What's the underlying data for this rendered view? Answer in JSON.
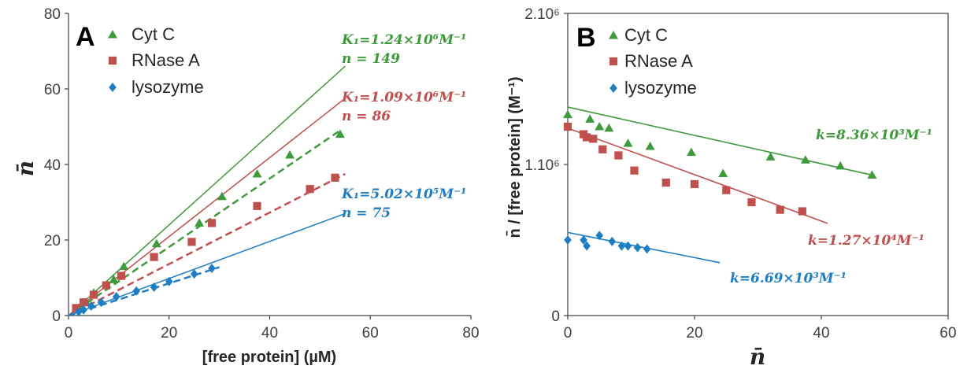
{
  "chart_data": [
    {
      "type": "scatter",
      "panel_label": "A",
      "xlabel": "[free protein] (µM)",
      "ylabel": "n̄",
      "xlim": [
        0,
        80
      ],
      "ylim": [
        0,
        80
      ],
      "x_ticks": [
        "0",
        "20",
        "40",
        "60",
        "80"
      ],
      "y_ticks": [
        "0",
        "20",
        "40",
        "60",
        "80"
      ],
      "legend_position": "top-left",
      "series": [
        {
          "name": "Cyt C",
          "color": "#3f9a3c",
          "marker": "triangle",
          "points": [
            [
              2,
              2
            ],
            [
              3.5,
              3.5
            ],
            [
              5,
              6
            ],
            [
              9,
              9.5
            ],
            [
              11,
              13
            ],
            [
              17.5,
              19
            ],
            [
              26,
              24.5
            ],
            [
              30.5,
              31.5
            ],
            [
              37.5,
              37.5
            ],
            [
              44,
              42.5
            ],
            [
              54,
              48
            ]
          ],
          "trend": [
            [
              0,
              0
            ],
            [
              54,
              49
            ]
          ],
          "langmuir_line": [
            [
              0,
              0
            ],
            [
              55,
              66
            ]
          ]
        },
        {
          "name": "RNase A",
          "color": "#c0504d",
          "marker": "square",
          "points": [
            [
              1.5,
              2
            ],
            [
              3,
              3.5
            ],
            [
              5,
              5.5
            ],
            [
              7.5,
              8
            ],
            [
              10.5,
              10.5
            ],
            [
              17,
              15.5
            ],
            [
              24.5,
              19.5
            ],
            [
              28.5,
              24.5
            ],
            [
              37.5,
              29
            ],
            [
              48,
              33.5
            ],
            [
              53,
              36.5
            ]
          ],
          "trend": [
            [
              0,
              0
            ],
            [
              55,
              37.5
            ]
          ],
          "langmuir_line": [
            [
              0,
              0
            ],
            [
              55,
              57.5
            ]
          ]
        },
        {
          "name": "lysozyme",
          "color": "#1f7ec3",
          "marker": "diamond",
          "points": [
            [
              2,
              1
            ],
            [
              3,
              1.5
            ],
            [
              4.5,
              2.5
            ],
            [
              6.5,
              3.5
            ],
            [
              9.5,
              5
            ],
            [
              13.5,
              6.5
            ],
            [
              17,
              7.5
            ],
            [
              20,
              9
            ],
            [
              25,
              11
            ],
            [
              28.5,
              12.5
            ]
          ],
          "trend": [
            [
              0,
              0
            ],
            [
              30,
              12.8
            ]
          ],
          "langmuir_line": [
            [
              0,
              0
            ],
            [
              55,
              27
            ]
          ]
        }
      ],
      "annotations": [
        {
          "line1": "K₁=1.24×10⁶M⁻¹",
          "line2": "n = 149",
          "color": "#3f9a3c"
        },
        {
          "line1": "K₁=1.09×10⁶M⁻¹",
          "line2": "n = 86",
          "color": "#c0504d"
        },
        {
          "line1": "K₁=5.02×10⁵M⁻¹",
          "line2": "n = 75",
          "color": "#1f7ec3"
        }
      ]
    },
    {
      "type": "scatter",
      "panel_label": "B",
      "xlabel": "n̄",
      "ylabel": "n̄ / [free protein] (M⁻¹)",
      "xlim": [
        0,
        60
      ],
      "ylim": [
        0,
        2000000
      ],
      "x_ticks": [
        "0",
        "20",
        "40",
        "60"
      ],
      "y_ticks": [
        "0",
        "1.10⁶",
        "2.10⁶"
      ],
      "legend_position": "top-left",
      "series": [
        {
          "name": "Cyt C",
          "color": "#3f9a3c",
          "marker": "triangle",
          "points": [
            [
              0,
              1330000
            ],
            [
              3.5,
              1300000
            ],
            [
              5,
              1250000
            ],
            [
              6.5,
              1240000
            ],
            [
              9.5,
              1140000
            ],
            [
              13,
              1120000
            ],
            [
              19.5,
              1080000
            ],
            [
              24.5,
              940000
            ],
            [
              32,
              1050000
            ],
            [
              37.5,
              1030000
            ],
            [
              43,
              990000
            ],
            [
              48,
              930000
            ]
          ],
          "trend": [
            [
              0,
              1380000
            ],
            [
              48,
              930000
            ]
          ]
        },
        {
          "name": "RNase A",
          "color": "#c0504d",
          "marker": "square",
          "points": [
            [
              0,
              1250000
            ],
            [
              2.5,
              1200000
            ],
            [
              3,
              1180000
            ],
            [
              4,
              1170000
            ],
            [
              5.5,
              1100000
            ],
            [
              8,
              1060000
            ],
            [
              10.5,
              960000
            ],
            [
              15.5,
              880000
            ],
            [
              20,
              870000
            ],
            [
              25,
              830000
            ],
            [
              29,
              750000
            ],
            [
              33.5,
              700000
            ],
            [
              37,
              690000
            ]
          ],
          "trend": [
            [
              0,
              1240000
            ],
            [
              41,
              610000
            ]
          ]
        },
        {
          "name": "lysozyme",
          "color": "#1f7ec3",
          "marker": "diamond",
          "points": [
            [
              0,
              500000
            ],
            [
              2.5,
              500000
            ],
            [
              3,
              460000
            ],
            [
              5,
              530000
            ],
            [
              7,
              490000
            ],
            [
              8.5,
              460000
            ],
            [
              9.5,
              460000
            ],
            [
              11,
              450000
            ],
            [
              12.5,
              440000
            ]
          ],
          "trend": [
            [
              0,
              550000
            ],
            [
              24,
              350000
            ]
          ]
        }
      ],
      "annotations": [
        {
          "line1": "k=8.36×10³M⁻¹",
          "color": "#3f9a3c"
        },
        {
          "line1": "k=1.27×10⁴M⁻¹",
          "color": "#c0504d"
        },
        {
          "line1": "k=6.69×10³M⁻¹",
          "color": "#1f7ec3"
        }
      ]
    }
  ]
}
